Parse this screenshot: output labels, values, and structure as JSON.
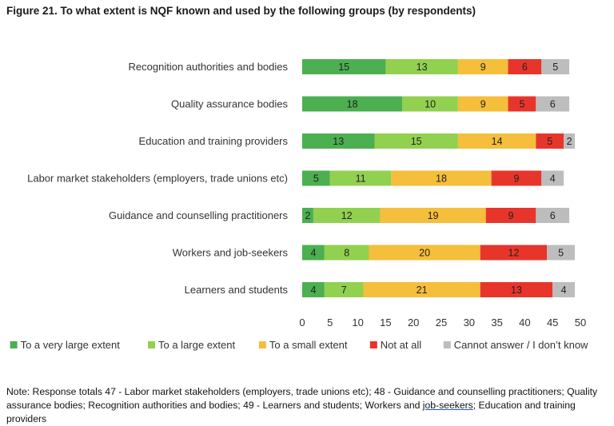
{
  "title": "Figure 21. To what extent is NQF known and used by the following groups (by respondents)",
  "note": {
    "before": "Note: Response totals 47 - Labor market stakeholders (employers, trade unions etc); 48 - Guidance and counselling practitioners; Quality assurance bodies; Recognition authorities and bodies; 49 - Learners and students; Workers and ",
    "underlined": "job-seekers",
    "after": "; Education and training providers"
  },
  "chart_data": {
    "type": "bar",
    "orientation": "horizontal",
    "stacked": true,
    "title": "To what extent is NQF known and used by the following groups (by respondents)",
    "categories": [
      "Recognition authorities and bodies",
      "Quality assurance bodies",
      "Education and training providers",
      "Labor market stakeholders (employers, trade unions etc)",
      "Guidance and counselling practitioners",
      "Workers and job-seekers",
      "Learners and students"
    ],
    "series": [
      {
        "name": "To a very large extent",
        "color": "#4caf50",
        "values": [
          15,
          18,
          13,
          5,
          2,
          4,
          4
        ]
      },
      {
        "name": "To a large extent",
        "color": "#92d050",
        "values": [
          13,
          10,
          15,
          11,
          12,
          8,
          7
        ]
      },
      {
        "name": "To a small extent",
        "color": "#f5be3b",
        "values": [
          9,
          9,
          14,
          18,
          19,
          20,
          21
        ]
      },
      {
        "name": "Not at all",
        "color": "#e8352b",
        "values": [
          6,
          5,
          5,
          9,
          9,
          12,
          13
        ]
      },
      {
        "name": "Cannot answer / I don’t know",
        "color": "#bdbdbd",
        "values": [
          5,
          6,
          2,
          4,
          6,
          5,
          4
        ]
      }
    ],
    "xlim": [
      0,
      50
    ],
    "xticks": [
      0,
      5,
      10,
      15,
      20,
      25,
      30,
      35,
      40,
      45,
      50
    ],
    "grid": false,
    "legend": "bottom"
  }
}
